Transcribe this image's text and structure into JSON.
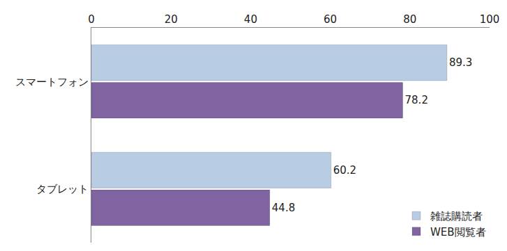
{
  "chart_data": {
    "type": "bar",
    "orientation": "horizontal",
    "categories": [
      "スマートフォン",
      "タブレット"
    ],
    "series": [
      {
        "name": "雑誌購読者",
        "color": "#b8cce4",
        "values": [
          89.3,
          60.2
        ]
      },
      {
        "name": "WEB閲覧者",
        "color": "#8064a2",
        "values": [
          78.2,
          44.8
        ]
      }
    ],
    "xlim": [
      0,
      100
    ],
    "xticks": [
      0,
      20,
      40,
      60,
      80,
      100
    ],
    "grid": false,
    "legend": "lower right",
    "data_labels": true
  }
}
